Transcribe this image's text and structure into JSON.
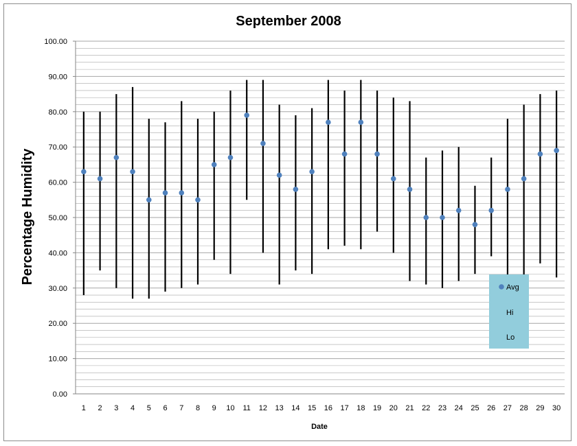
{
  "chart_data": {
    "type": "scatter",
    "title": "September 2008",
    "xlabel": "Date",
    "ylabel": "Percentage Humidity",
    "ylim": [
      0,
      100
    ],
    "ytick_labels": [
      "0.00",
      "10.00",
      "20.00",
      "30.00",
      "40.00",
      "50.00",
      "60.00",
      "70.00",
      "80.00",
      "90.00",
      "100.00"
    ],
    "categories": [
      "1",
      "2",
      "3",
      "4",
      "5",
      "6",
      "7",
      "8",
      "9",
      "10",
      "11",
      "12",
      "13",
      "14",
      "15",
      "16",
      "17",
      "18",
      "19",
      "20",
      "21",
      "22",
      "23",
      "24",
      "25",
      "26",
      "27",
      "28",
      "29",
      "30"
    ],
    "grid": true,
    "legend_position": "bottom-right",
    "series": [
      {
        "name": "Avg",
        "values": [
          63,
          61,
          67,
          63,
          55,
          57,
          57,
          55,
          65,
          67,
          79,
          71,
          62,
          58,
          63,
          77,
          68,
          77,
          68,
          61,
          58,
          50,
          50,
          52,
          48,
          52,
          58,
          61,
          68,
          69
        ]
      },
      {
        "name": "Hi",
        "values": [
          80,
          80,
          85,
          87,
          78,
          77,
          83,
          78,
          80,
          86,
          89,
          89,
          82,
          79,
          81,
          89,
          86,
          89,
          86,
          84,
          83,
          67,
          69,
          70,
          59,
          67,
          78,
          82,
          85,
          86
        ]
      },
      {
        "name": "Lo",
        "values": [
          28,
          35,
          30,
          27,
          27,
          29,
          30,
          31,
          38,
          34,
          55,
          40,
          31,
          35,
          34,
          41,
          42,
          41,
          46,
          40,
          32,
          31,
          30,
          32,
          34,
          39,
          33,
          33,
          37,
          33
        ]
      }
    ],
    "colors": {
      "avg_marker": "#4f81bd",
      "hilo_line": "#000000",
      "gridline": "#a6a6a6",
      "legend_bg": "#92cddc"
    }
  }
}
